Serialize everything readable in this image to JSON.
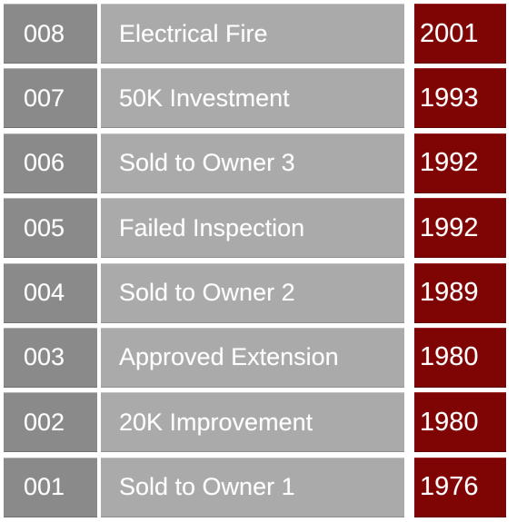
{
  "rows": [
    {
      "id": "008",
      "event": "Electrical Fire",
      "year": "2001"
    },
    {
      "id": "007",
      "event": "50K Investment",
      "year": "1993"
    },
    {
      "id": "006",
      "event": "Sold to Owner 3",
      "year": "1992"
    },
    {
      "id": "005",
      "event": "Failed Inspection",
      "year": "1992"
    },
    {
      "id": "004",
      "event": "Sold to Owner 2",
      "year": "1989"
    },
    {
      "id": "003",
      "event": "Approved Extension",
      "year": "1980"
    },
    {
      "id": "002",
      "event": "20K Improvement",
      "year": "1980"
    },
    {
      "id": "001",
      "event": "Sold to Owner 1",
      "year": "1976"
    }
  ],
  "colors": {
    "id_bg": "#8a8a8a",
    "event_bg": "#aaaaaa",
    "year_bg": "#7f0404",
    "text": "#ffffff"
  }
}
